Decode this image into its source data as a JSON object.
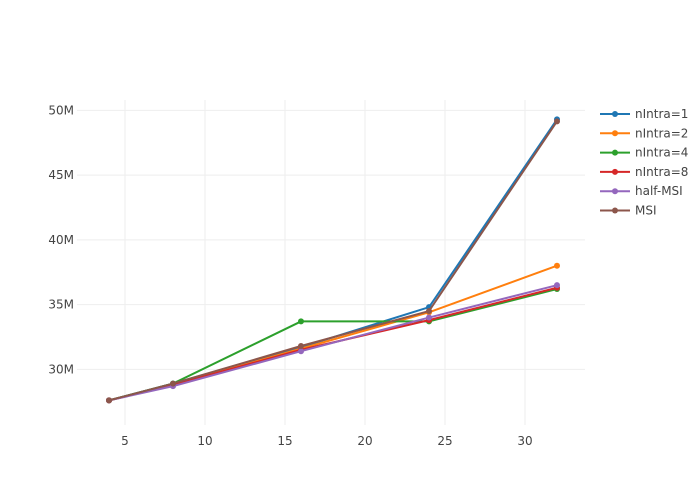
{
  "chart_data": {
    "type": "line",
    "title": "",
    "xlabel": "",
    "ylabel": "",
    "x": [
      4,
      8,
      16,
      24,
      32
    ],
    "xlim": [
      2,
      33.75
    ],
    "ylim": [
      25700000,
      50800000
    ],
    "xticks": [
      5,
      10,
      15,
      20,
      25,
      30
    ],
    "yticks": [
      30000000,
      35000000,
      40000000,
      45000000,
      50000000
    ],
    "ytick_labels": [
      "30M",
      "35M",
      "40M",
      "45M",
      "50M"
    ],
    "grid": true,
    "legend_position": "right",
    "series": [
      {
        "name": "nIntra=1",
        "color": "#1f77b4",
        "values": [
          27600000,
          28900000,
          31700000,
          34800000,
          49300000
        ]
      },
      {
        "name": "nIntra=2",
        "color": "#ff7f0e",
        "values": [
          27600000,
          28800000,
          31600000,
          34400000,
          38000000
        ]
      },
      {
        "name": "nIntra=4",
        "color": "#2ca02c",
        "values": [
          27600000,
          28900000,
          33700000,
          33700000,
          36200000
        ]
      },
      {
        "name": "nIntra=8",
        "color": "#d62728",
        "values": [
          27600000,
          28800000,
          31500000,
          33800000,
          36300000
        ]
      },
      {
        "name": "half-MSI",
        "color": "#9467bd",
        "values": [
          27600000,
          28700000,
          31400000,
          34000000,
          36500000
        ]
      },
      {
        "name": "MSI",
        "color": "#8c564b",
        "values": [
          27600000,
          28900000,
          31800000,
          34500000,
          49150000
        ]
      }
    ]
  }
}
